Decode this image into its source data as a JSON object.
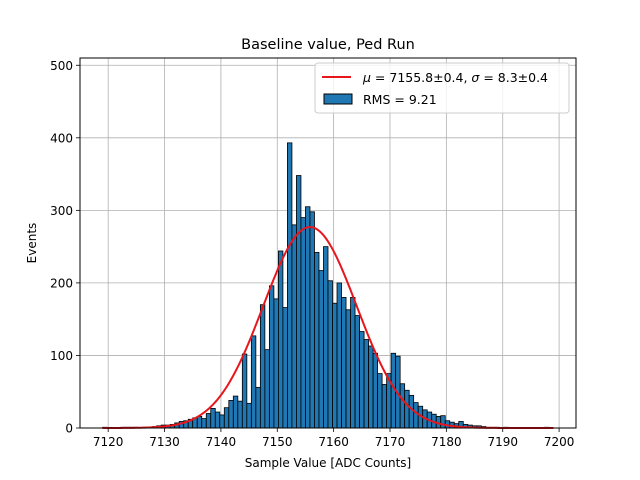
{
  "chart_data": {
    "type": "bar",
    "title": "Baseline value, Ped Run",
    "xlabel": "Sample Value [ADC Counts]",
    "ylabel": "Events",
    "xlim": [
      7115,
      7203
    ],
    "ylim": [
      0,
      510
    ],
    "xticks": [
      7120,
      7130,
      7140,
      7150,
      7160,
      7170,
      7180,
      7190,
      7200
    ],
    "yticks": [
      0,
      100,
      200,
      300,
      400,
      500
    ],
    "grid": true,
    "legend_position": "top-right",
    "colors": {
      "bar_fill": "#1f77b4",
      "bar_edge": "#000000",
      "fit_line": "#e8161b",
      "grid": "#b0b0b0"
    },
    "histogram": {
      "name": "RMS = 9.21",
      "bin_start": 7119,
      "bin_width": 0.8,
      "counts": [
        1,
        0,
        0,
        0,
        1,
        1,
        1,
        1,
        0,
        1,
        1,
        2,
        3,
        4,
        4,
        5,
        7,
        9,
        10,
        12,
        14,
        16,
        13,
        20,
        27,
        22,
        18,
        28,
        38,
        44,
        37,
        102,
        34,
        127,
        56,
        170,
        108,
        196,
        178,
        244,
        166,
        393,
        280,
        348,
        290,
        305,
        298,
        242,
        217,
        250,
        203,
        172,
        200,
        180,
        163,
        180,
        155,
        133,
        122,
        113,
        103,
        75,
        60,
        75,
        103,
        99,
        61,
        52,
        45,
        35,
        30,
        25,
        22,
        19,
        16,
        17,
        10,
        8,
        6,
        9,
        5,
        4,
        3,
        3,
        2,
        1,
        1,
        1,
        0,
        1,
        0,
        0,
        0,
        0,
        0,
        0,
        0,
        0,
        1,
        0
      ]
    },
    "fit": {
      "name": "μ = 7155.8±0.4, σ = 8.3±0.4",
      "mu": 7155.8,
      "sigma": 8.3,
      "amplitude": 277,
      "x_range": [
        7119,
        7199
      ]
    },
    "legend": [
      {
        "key": "fit",
        "label_math": "μ",
        "label_text": " = 7155.8±0.4, ",
        "label_math2": "σ",
        "label_text2": " = 8.3±0.4"
      },
      {
        "key": "hist",
        "label": "RMS = 9.21"
      }
    ]
  }
}
